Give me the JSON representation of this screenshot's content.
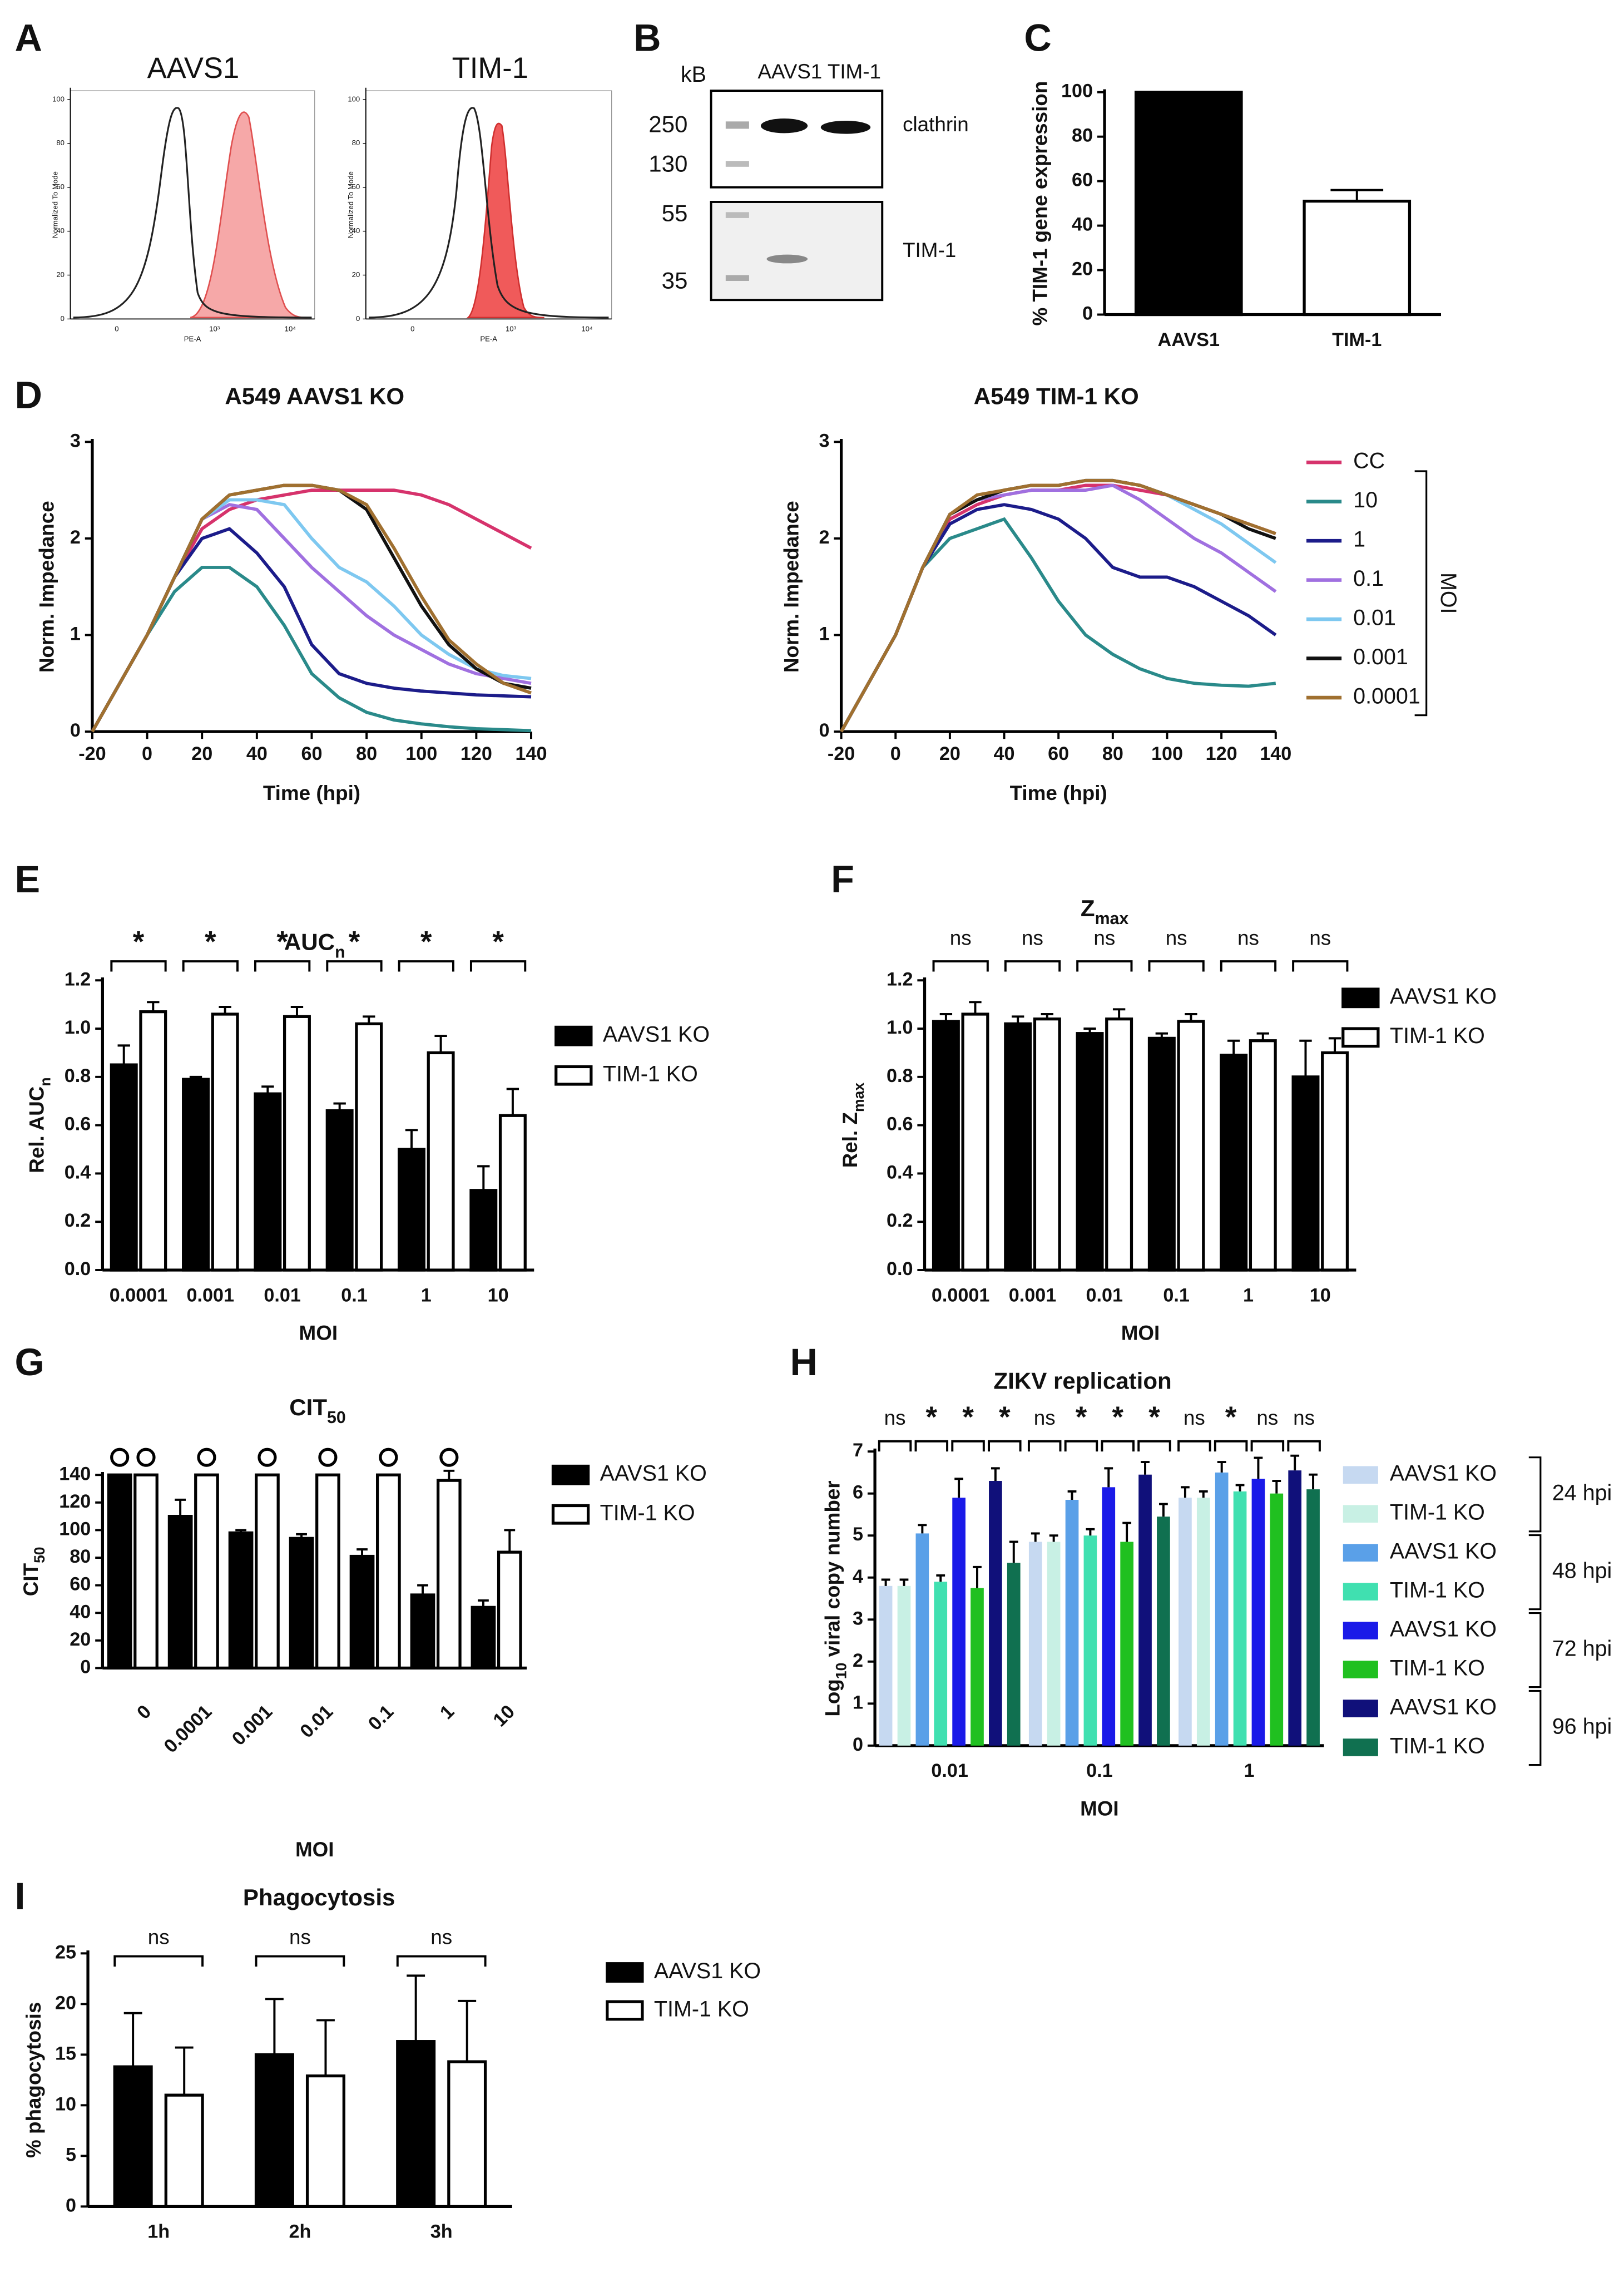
{
  "panel_labels": {
    "A": "A",
    "B": "B",
    "C": "C",
    "D": "D",
    "E": "E",
    "F": "F",
    "G": "G",
    "H": "H",
    "I": "I"
  },
  "blot": {
    "kb_label": "kB",
    "lanes": "AAVS1 TIM-1",
    "top_markers": [
      "250",
      "130"
    ],
    "bottom_markers": [
      "55",
      "35"
    ],
    "top_band": "clathrin",
    "bottom_band": "TIM-1"
  },
  "chart_data": [
    {
      "type": "flow",
      "title": "AAVS1",
      "ylabel": "Normalized To Mode",
      "xlabel": "PE-A",
      "ylim": [
        0,
        100
      ],
      "yticks": [
        0,
        20,
        40,
        60,
        80,
        100
      ],
      "xticklabels": [
        "0",
        "10³",
        "10⁴"
      ]
    },
    {
      "type": "flow",
      "title": "TIM-1",
      "ylabel": "Normalized To Mode",
      "xlabel": "PE-A",
      "ylim": [
        0,
        100
      ],
      "yticks": [
        0,
        20,
        40,
        60,
        80,
        100
      ],
      "xticklabels": [
        "0",
        "10³",
        "10⁴"
      ]
    },
    {
      "type": "bar",
      "ylabel": "% TIM-1 gene expression",
      "categories": [
        "AAVS1",
        "TIM-1"
      ],
      "values": [
        100,
        51
      ],
      "errors": [
        null,
        5
      ],
      "colors": [
        "#000000",
        "#ffffff"
      ],
      "edgecolor": "#000000",
      "ylim": [
        0,
        100
      ],
      "yticks": [
        0,
        20,
        40,
        60,
        80,
        100
      ]
    },
    {
      "type": "line",
      "title": "A549 AAVS1 KO",
      "xlabel": "Time (hpi)",
      "ylabel": "Norm. Impedance",
      "x": [
        -20,
        -10,
        0,
        10,
        20,
        30,
        40,
        50,
        60,
        70,
        80,
        90,
        100,
        110,
        120,
        130,
        140
      ],
      "xlim": [
        -20,
        140
      ],
      "xticks": [
        -20,
        0,
        20,
        40,
        60,
        80,
        100,
        120,
        140
      ],
      "ylim": [
        0,
        3
      ],
      "yticks": [
        0,
        1,
        2,
        3
      ],
      "series": [
        {
          "color": "#d6336c",
          "values": [
            0,
            0.5,
            1.0,
            1.6,
            2.1,
            2.3,
            2.4,
            2.45,
            2.5,
            2.5,
            2.5,
            2.5,
            2.45,
            2.35,
            2.2,
            2.05,
            1.9
          ]
        },
        {
          "color": "#2a8a8a",
          "values": [
            0,
            0.5,
            1.0,
            1.45,
            1.7,
            1.7,
            1.5,
            1.1,
            0.6,
            0.35,
            0.2,
            0.12,
            0.08,
            0.05,
            0.03,
            0.02,
            0.01
          ]
        },
        {
          "color": "#1c1c8a",
          "values": [
            0,
            0.5,
            1.0,
            1.6,
            2.0,
            2.1,
            1.85,
            1.5,
            0.9,
            0.6,
            0.5,
            0.45,
            0.42,
            0.4,
            0.38,
            0.37,
            0.36
          ]
        },
        {
          "color": "#a070e0",
          "values": [
            0,
            0.5,
            1.0,
            1.6,
            2.2,
            2.35,
            2.3,
            2.0,
            1.7,
            1.45,
            1.2,
            1.0,
            0.85,
            0.7,
            0.6,
            0.55,
            0.5
          ]
        },
        {
          "color": "#7ec8f0",
          "values": [
            0,
            0.5,
            1.0,
            1.6,
            2.2,
            2.4,
            2.4,
            2.35,
            2.0,
            1.7,
            1.55,
            1.3,
            1.0,
            0.8,
            0.65,
            0.58,
            0.55
          ]
        },
        {
          "color": "#111111",
          "values": [
            0,
            0.5,
            1.0,
            1.6,
            2.2,
            2.45,
            2.5,
            2.55,
            2.55,
            2.5,
            2.3,
            1.8,
            1.3,
            0.9,
            0.65,
            0.5,
            0.45
          ]
        },
        {
          "color": "#a07030",
          "values": [
            0,
            0.5,
            1.0,
            1.6,
            2.2,
            2.45,
            2.5,
            2.55,
            2.55,
            2.5,
            2.35,
            1.9,
            1.4,
            0.95,
            0.7,
            0.5,
            0.4
          ]
        }
      ]
    },
    {
      "type": "line",
      "title": "A549 TIM-1 KO",
      "xlabel": "Time (hpi)",
      "ylabel": "Norm. Impedance",
      "legend_title": "MOI",
      "x": [
        -20,
        -10,
        0,
        10,
        20,
        30,
        40,
        50,
        60,
        70,
        80,
        90,
        100,
        110,
        120,
        130,
        140
      ],
      "xlim": [
        -20,
        140
      ],
      "xticks": [
        -20,
        0,
        20,
        40,
        60,
        80,
        100,
        120,
        140
      ],
      "ylim": [
        0,
        3
      ],
      "yticks": [
        0,
        1,
        2,
        3
      ],
      "series": [
        {
          "name": "CC",
          "color": "#d6336c",
          "values": [
            0,
            0.5,
            1.0,
            1.7,
            2.2,
            2.35,
            2.45,
            2.5,
            2.5,
            2.55,
            2.55,
            2.5,
            2.45,
            2.35,
            2.25,
            2.15,
            2.05
          ]
        },
        {
          "name": "10",
          "color": "#2a8a8a",
          "values": [
            0,
            0.5,
            1.0,
            1.7,
            2.0,
            2.1,
            2.2,
            1.8,
            1.35,
            1.0,
            0.8,
            0.65,
            0.55,
            0.5,
            0.48,
            0.47,
            0.5
          ]
        },
        {
          "name": "1",
          "color": "#1c1c8a",
          "values": [
            0,
            0.5,
            1.0,
            1.7,
            2.15,
            2.3,
            2.35,
            2.3,
            2.2,
            2.0,
            1.7,
            1.6,
            1.6,
            1.5,
            1.35,
            1.2,
            1.0
          ]
        },
        {
          "name": "0.1",
          "color": "#a070e0",
          "values": [
            0,
            0.5,
            1.0,
            1.7,
            2.25,
            2.4,
            2.45,
            2.5,
            2.5,
            2.5,
            2.55,
            2.4,
            2.2,
            2.0,
            1.85,
            1.65,
            1.45
          ]
        },
        {
          "name": "0.01",
          "color": "#7ec8f0",
          "values": [
            0,
            0.5,
            1.0,
            1.7,
            2.25,
            2.4,
            2.5,
            2.55,
            2.55,
            2.6,
            2.6,
            2.55,
            2.45,
            2.3,
            2.15,
            1.95,
            1.75
          ]
        },
        {
          "name": "0.001",
          "color": "#111111",
          "values": [
            0,
            0.5,
            1.0,
            1.7,
            2.25,
            2.4,
            2.5,
            2.55,
            2.55,
            2.6,
            2.6,
            2.55,
            2.45,
            2.35,
            2.25,
            2.1,
            2.0
          ]
        },
        {
          "name": "0.0001",
          "color": "#a07030",
          "values": [
            0,
            0.5,
            1.0,
            1.7,
            2.25,
            2.45,
            2.5,
            2.55,
            2.55,
            2.6,
            2.6,
            2.55,
            2.45,
            2.35,
            2.25,
            2.15,
            2.05
          ]
        }
      ]
    },
    {
      "type": "grouped_bar",
      "title": [
        {
          "text": "AUC"
        },
        {
          "text": "n",
          "sub": true
        }
      ],
      "xlabel": "MOI",
      "ylabel": [
        {
          "text": "Rel. AUC"
        },
        {
          "text": "n",
          "sub": true
        }
      ],
      "categories": [
        "0.0001",
        "0.001",
        "0.01",
        "0.1",
        "1",
        "10"
      ],
      "ylim": [
        0,
        1.2
      ],
      "yticks": [
        {
          "value": 0,
          "label": "0.0"
        },
        0.2,
        0.4,
        0.6,
        0.8,
        {
          "value": 1,
          "label": "1.0"
        },
        1.2
      ],
      "annotations": [
        "*",
        "*",
        "*",
        "*",
        "*",
        "*"
      ],
      "series": [
        {
          "name": "AAVS1 KO",
          "color": "#000000",
          "edgecolor": "#000000",
          "values": [
            0.85,
            0.79,
            0.73,
            0.66,
            0.5,
            0.33
          ],
          "errors": [
            0.08,
            0.01,
            0.03,
            0.03,
            0.08,
            0.1
          ]
        },
        {
          "name": "TIM-1 KO",
          "color": "#ffffff",
          "edgecolor": "#000000",
          "values": [
            1.07,
            1.06,
            1.05,
            1.02,
            0.9,
            0.64
          ],
          "errors": [
            0.04,
            0.03,
            0.04,
            0.03,
            0.07,
            0.11
          ]
        }
      ]
    },
    {
      "type": "grouped_bar",
      "title": [
        {
          "text": "Z"
        },
        {
          "text": "max",
          "sub": true
        }
      ],
      "xlabel": "MOI",
      "ylabel": [
        {
          "text": "Rel. Z"
        },
        {
          "text": "max",
          "sub": true
        }
      ],
      "categories": [
        "0.0001",
        "0.001",
        "0.01",
        "0.1",
        "1",
        "10"
      ],
      "ylim": [
        0,
        1.2
      ],
      "yticks": [
        {
          "value": 0,
          "label": "0.0"
        },
        0.2,
        0.4,
        0.6,
        0.8,
        {
          "value": 1,
          "label": "1.0"
        },
        1.2
      ],
      "annotations": [
        "ns",
        "ns",
        "ns",
        "ns",
        "ns",
        "ns"
      ],
      "series": [
        {
          "name": "AAVS1 KO",
          "color": "#000000",
          "edgecolor": "#000000",
          "values": [
            1.03,
            1.02,
            0.98,
            0.96,
            0.89,
            0.8
          ],
          "errors": [
            0.03,
            0.03,
            0.02,
            0.02,
            0.06,
            0.15
          ]
        },
        {
          "name": "TIM-1 KO",
          "color": "#ffffff",
          "edgecolor": "#000000",
          "values": [
            1.06,
            1.04,
            1.04,
            1.03,
            0.95,
            0.9
          ],
          "errors": [
            0.05,
            0.02,
            0.04,
            0.03,
            0.03,
            0.06
          ]
        }
      ]
    },
    {
      "type": "grouped_bar",
      "title": [
        {
          "text": "CIT"
        },
        {
          "text": "50",
          "sub": true
        }
      ],
      "xlabel": "MOI",
      "ylabel": [
        {
          "text": "CIT"
        },
        {
          "text": "50",
          "sub": true
        }
      ],
      "categories": [
        "0",
        "0.0001",
        "0.001",
        "0.01",
        "0.1",
        "1",
        "10"
      ],
      "ylim": [
        0,
        140
      ],
      "yticks": [
        0,
        20,
        40,
        60,
        80,
        100,
        120,
        140
      ],
      "series": [
        {
          "name": "AAVS1 KO",
          "color": "#000000",
          "edgecolor": "#000000",
          "values": [
            140,
            110,
            98,
            94,
            81,
            53,
            44
          ],
          "errors": [
            null,
            12,
            2,
            3,
            5,
            7,
            5
          ]
        },
        {
          "name": "TIM-1 KO",
          "color": "#ffffff",
          "edgecolor": "#000000",
          "values": [
            140,
            140,
            140,
            140,
            140,
            136,
            84
          ],
          "errors": [
            null,
            null,
            null,
            null,
            null,
            7,
            16
          ]
        }
      ]
    },
    {
      "type": "grouped_bar",
      "title": "ZIKV replication",
      "xlabel": "MOI",
      "ylabel": [
        {
          "text": "Log"
        },
        {
          "text": "10",
          "sub": true
        },
        {
          "text": " viral copy number"
        }
      ],
      "categories": [
        "0.01",
        "0.1",
        "1"
      ],
      "ylim": [
        0,
        7
      ],
      "yticks": [
        0,
        1,
        2,
        3,
        4,
        5,
        6,
        7
      ],
      "annotations": [
        "ns",
        "*",
        "*",
        "*",
        "ns",
        "*",
        "*",
        "*",
        "ns",
        "*",
        "ns",
        "ns"
      ],
      "legend_groups": [
        "24 hpi",
        "48 hpi",
        "72 hpi",
        "96 hpi"
      ],
      "series": [
        {
          "name": "AAVS1 KO",
          "color": "#c6d9f1",
          "values": [
            3.8,
            4.85,
            5.9
          ],
          "errors": [
            0.15,
            0.2,
            0.25
          ]
        },
        {
          "name": "TIM-1 KO",
          "color": "#c8f0e4",
          "values": [
            3.8,
            4.85,
            5.9
          ],
          "errors": [
            0.15,
            0.15,
            0.15
          ]
        },
        {
          "name": "AAVS1 KO",
          "color": "#5aa0e8",
          "values": [
            5.05,
            5.85,
            6.5
          ],
          "errors": [
            0.2,
            0.2,
            0.25
          ]
        },
        {
          "name": "TIM-1 KO",
          "color": "#40e0b0",
          "values": [
            3.9,
            5.0,
            6.05
          ],
          "errors": [
            0.15,
            0.15,
            0.15
          ]
        },
        {
          "name": "AAVS1 KO",
          "color": "#1a1ae8",
          "values": [
            5.9,
            6.15,
            6.35
          ],
          "errors": [
            0.45,
            0.45,
            0.5
          ]
        },
        {
          "name": "TIM-1 KO",
          "color": "#20c020",
          "values": [
            3.75,
            4.85,
            6.0
          ],
          "errors": [
            0.5,
            0.45,
            0.3
          ]
        },
        {
          "name": "AAVS1 KO",
          "color": "#10107a",
          "values": [
            6.3,
            6.45,
            6.55
          ],
          "errors": [
            0.3,
            0.3,
            0.35
          ]
        },
        {
          "name": "TIM-1 KO",
          "color": "#107050",
          "values": [
            4.35,
            5.45,
            6.1
          ],
          "errors": [
            0.5,
            0.3,
            0.35
          ]
        }
      ]
    },
    {
      "type": "grouped_bar",
      "title": "Phagocytosis",
      "ylabel": "% phagocytosis",
      "categories": [
        "1h",
        "2h",
        "3h"
      ],
      "ylim": [
        0,
        25
      ],
      "yticks": [
        0,
        5,
        10,
        15,
        20,
        25
      ],
      "annotations": [
        "ns",
        "ns",
        "ns"
      ],
      "series": [
        {
          "name": "AAVS1 KO",
          "color": "#000000",
          "edgecolor": "#000000",
          "values": [
            13.8,
            15.0,
            16.3
          ],
          "errors": [
            5.3,
            5.5,
            6.5
          ]
        },
        {
          "name": "TIM-1 KO",
          "color": "#ffffff",
          "edgecolor": "#000000",
          "values": [
            11.0,
            12.9,
            14.3
          ],
          "errors": [
            4.7,
            5.5,
            6.0
          ]
        }
      ]
    }
  ]
}
